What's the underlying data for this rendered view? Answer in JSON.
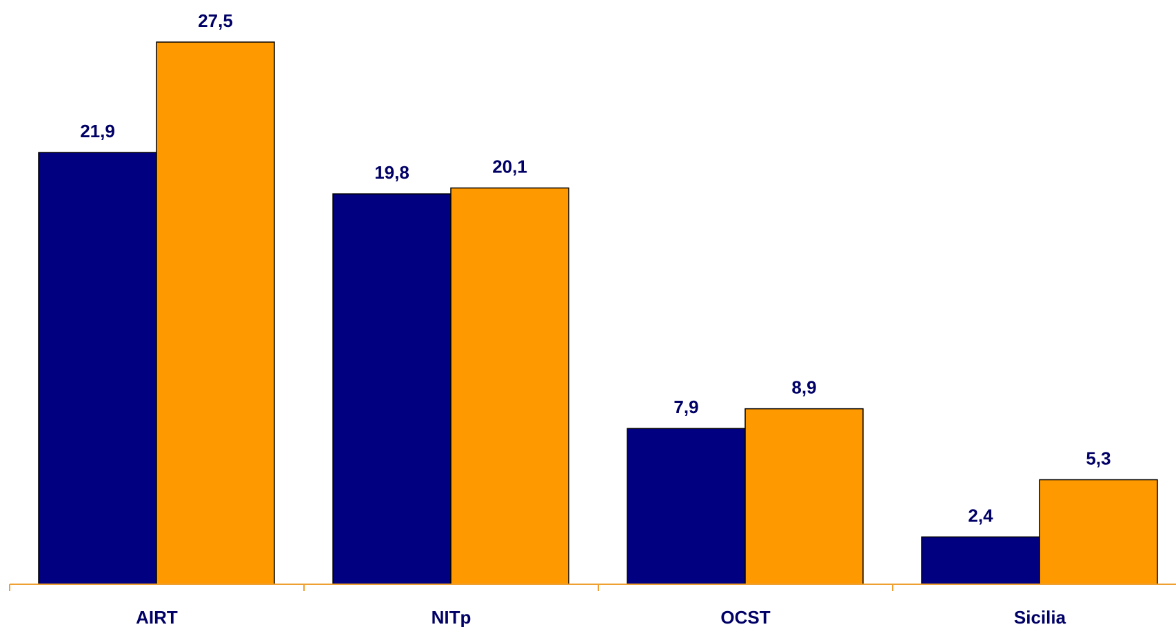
{
  "chart_data": {
    "type": "bar",
    "categories": [
      "AIRT",
      "NITp",
      "OCST",
      "Sicilia"
    ],
    "series": [
      {
        "values": [
          21.9,
          19.8,
          7.9,
          2.4
        ],
        "labels": [
          "21,9",
          "19,8",
          "7,9",
          "2,4"
        ],
        "color": "#000080"
      },
      {
        "values": [
          27.5,
          20.1,
          8.9,
          5.3
        ],
        "labels": [
          "27,5",
          "20,1",
          "8,9",
          "5,3"
        ],
        "color": "#FF9900"
      }
    ],
    "ylim": [
      0,
      27.5
    ],
    "grid": false,
    "colors": {
      "axis": "#F0A030",
      "label_text": "#000066",
      "bar_outline": "#000000"
    }
  }
}
